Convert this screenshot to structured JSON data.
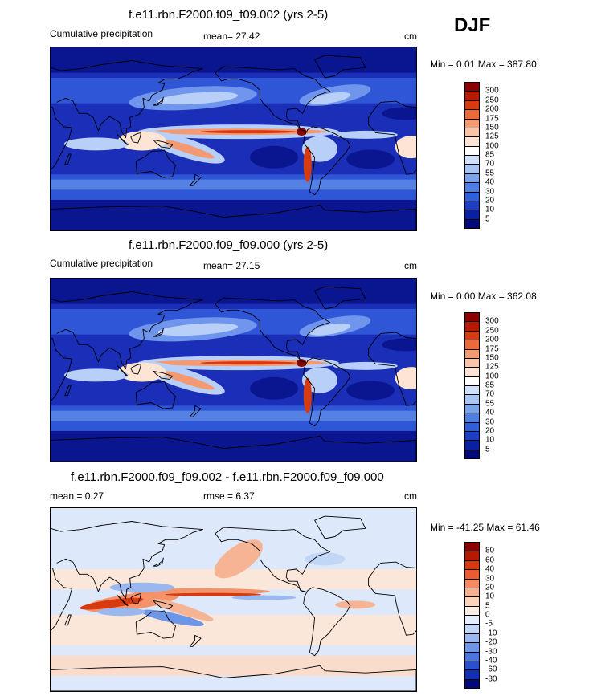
{
  "season": "DJF",
  "panels": [
    {
      "title": "f.e11.rbn.F2000.f09_f09.002 (yrs 2-5)",
      "left_label": "Cumulative precipitation",
      "mid_label": "mean=  27.42",
      "units": "cm",
      "minmax": "Min =   0.01 Max = 387.80",
      "colorbar_labels": [
        "300",
        "250",
        "200",
        "175",
        "150",
        "125",
        "100",
        "85",
        "70",
        "55",
        "40",
        "30",
        "20",
        "10",
        "5"
      ],
      "colorbar_colors": [
        "#8b0000",
        "#b51a00",
        "#d83a10",
        "#ec6a3a",
        "#f49a72",
        "#f9c4a8",
        "#fde4d4",
        "#ffffff",
        "#cfe0fa",
        "#a8c4f2",
        "#7aa2ea",
        "#4f7fe2",
        "#2f5fda",
        "#1a3fc4",
        "#0a1fa2",
        "#020a7a"
      ],
      "colormap": "precip"
    },
    {
      "title": "f.e11.rbn.F2000.f09_f09.000 (yrs 2-5)",
      "left_label": "Cumulative precipitation",
      "mid_label": "mean=  27.15",
      "units": "cm",
      "minmax": "Min =   0.00 Max = 362.08",
      "colorbar_labels": [
        "300",
        "250",
        "200",
        "175",
        "150",
        "125",
        "100",
        "85",
        "70",
        "55",
        "40",
        "30",
        "20",
        "10",
        "5"
      ],
      "colorbar_colors": [
        "#8b0000",
        "#b51a00",
        "#d83a10",
        "#ec6a3a",
        "#f49a72",
        "#f9c4a8",
        "#fde4d4",
        "#ffffff",
        "#cfe0fa",
        "#a8c4f2",
        "#7aa2ea",
        "#4f7fe2",
        "#2f5fda",
        "#1a3fc4",
        "#0a1fa2",
        "#020a7a"
      ],
      "colormap": "precip"
    },
    {
      "title": "f.e11.rbn.F2000.f09_f09.002 - f.e11.rbn.F2000.f09_f09.000",
      "left_label": "mean =   0.27",
      "mid_label": "rmse =   6.37",
      "units": "cm",
      "minmax": "Min = -41.25 Max =  61.46",
      "colorbar_labels": [
        "80",
        "60",
        "40",
        "30",
        "20",
        "10",
        "5",
        "0",
        "-5",
        "-10",
        "-20",
        "-30",
        "-40",
        "-60",
        "-80"
      ],
      "colorbar_colors": [
        "#8b0000",
        "#b51a00",
        "#d83a10",
        "#ec5a30",
        "#f48a60",
        "#f9b090",
        "#fcd4bc",
        "#fdeee4",
        "#e4eefc",
        "#c2d6f6",
        "#9ab8ee",
        "#6e96e6",
        "#4a74de",
        "#2a50d0",
        "#1230b4",
        "#020a7a"
      ],
      "colormap": "diff"
    }
  ]
}
